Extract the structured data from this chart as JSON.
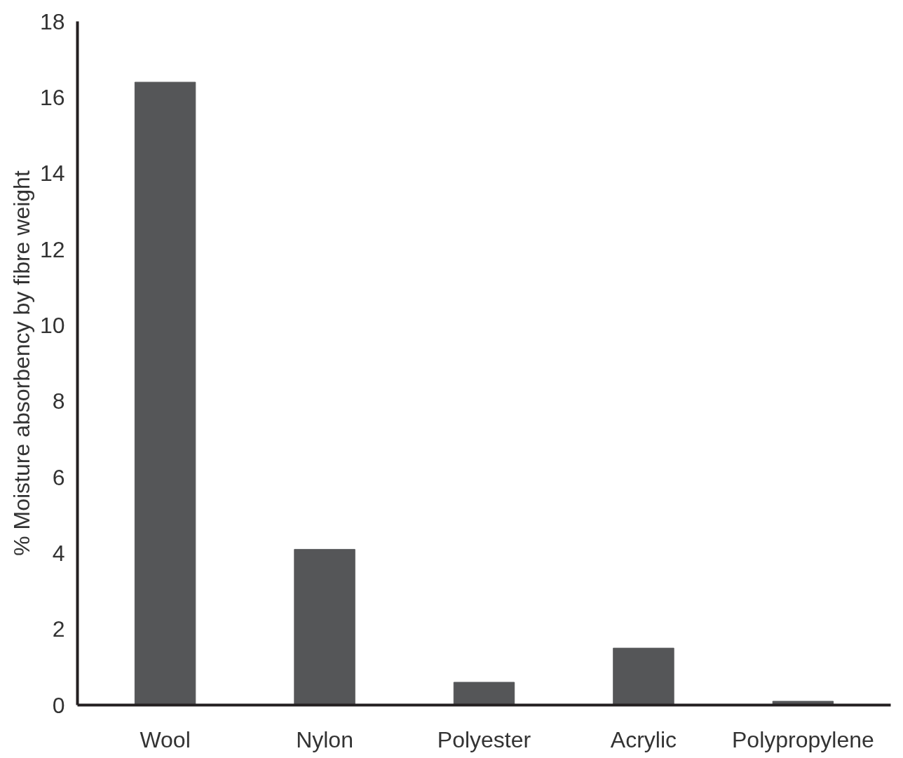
{
  "chart_data": {
    "type": "bar",
    "ylabel": "% Moisture absorbency by fibre weight",
    "categories": [
      "Wool",
      "Nylon",
      "Polyester",
      "Acrylic",
      "Polypropylene"
    ],
    "values": [
      16.4,
      4.1,
      0.6,
      1.5,
      0.1
    ],
    "color": "#555658",
    "ylim": [
      0,
      18
    ],
    "yticks": [
      0,
      2,
      4,
      6,
      8,
      10,
      12,
      14,
      16,
      18
    ],
    "grid": false
  }
}
